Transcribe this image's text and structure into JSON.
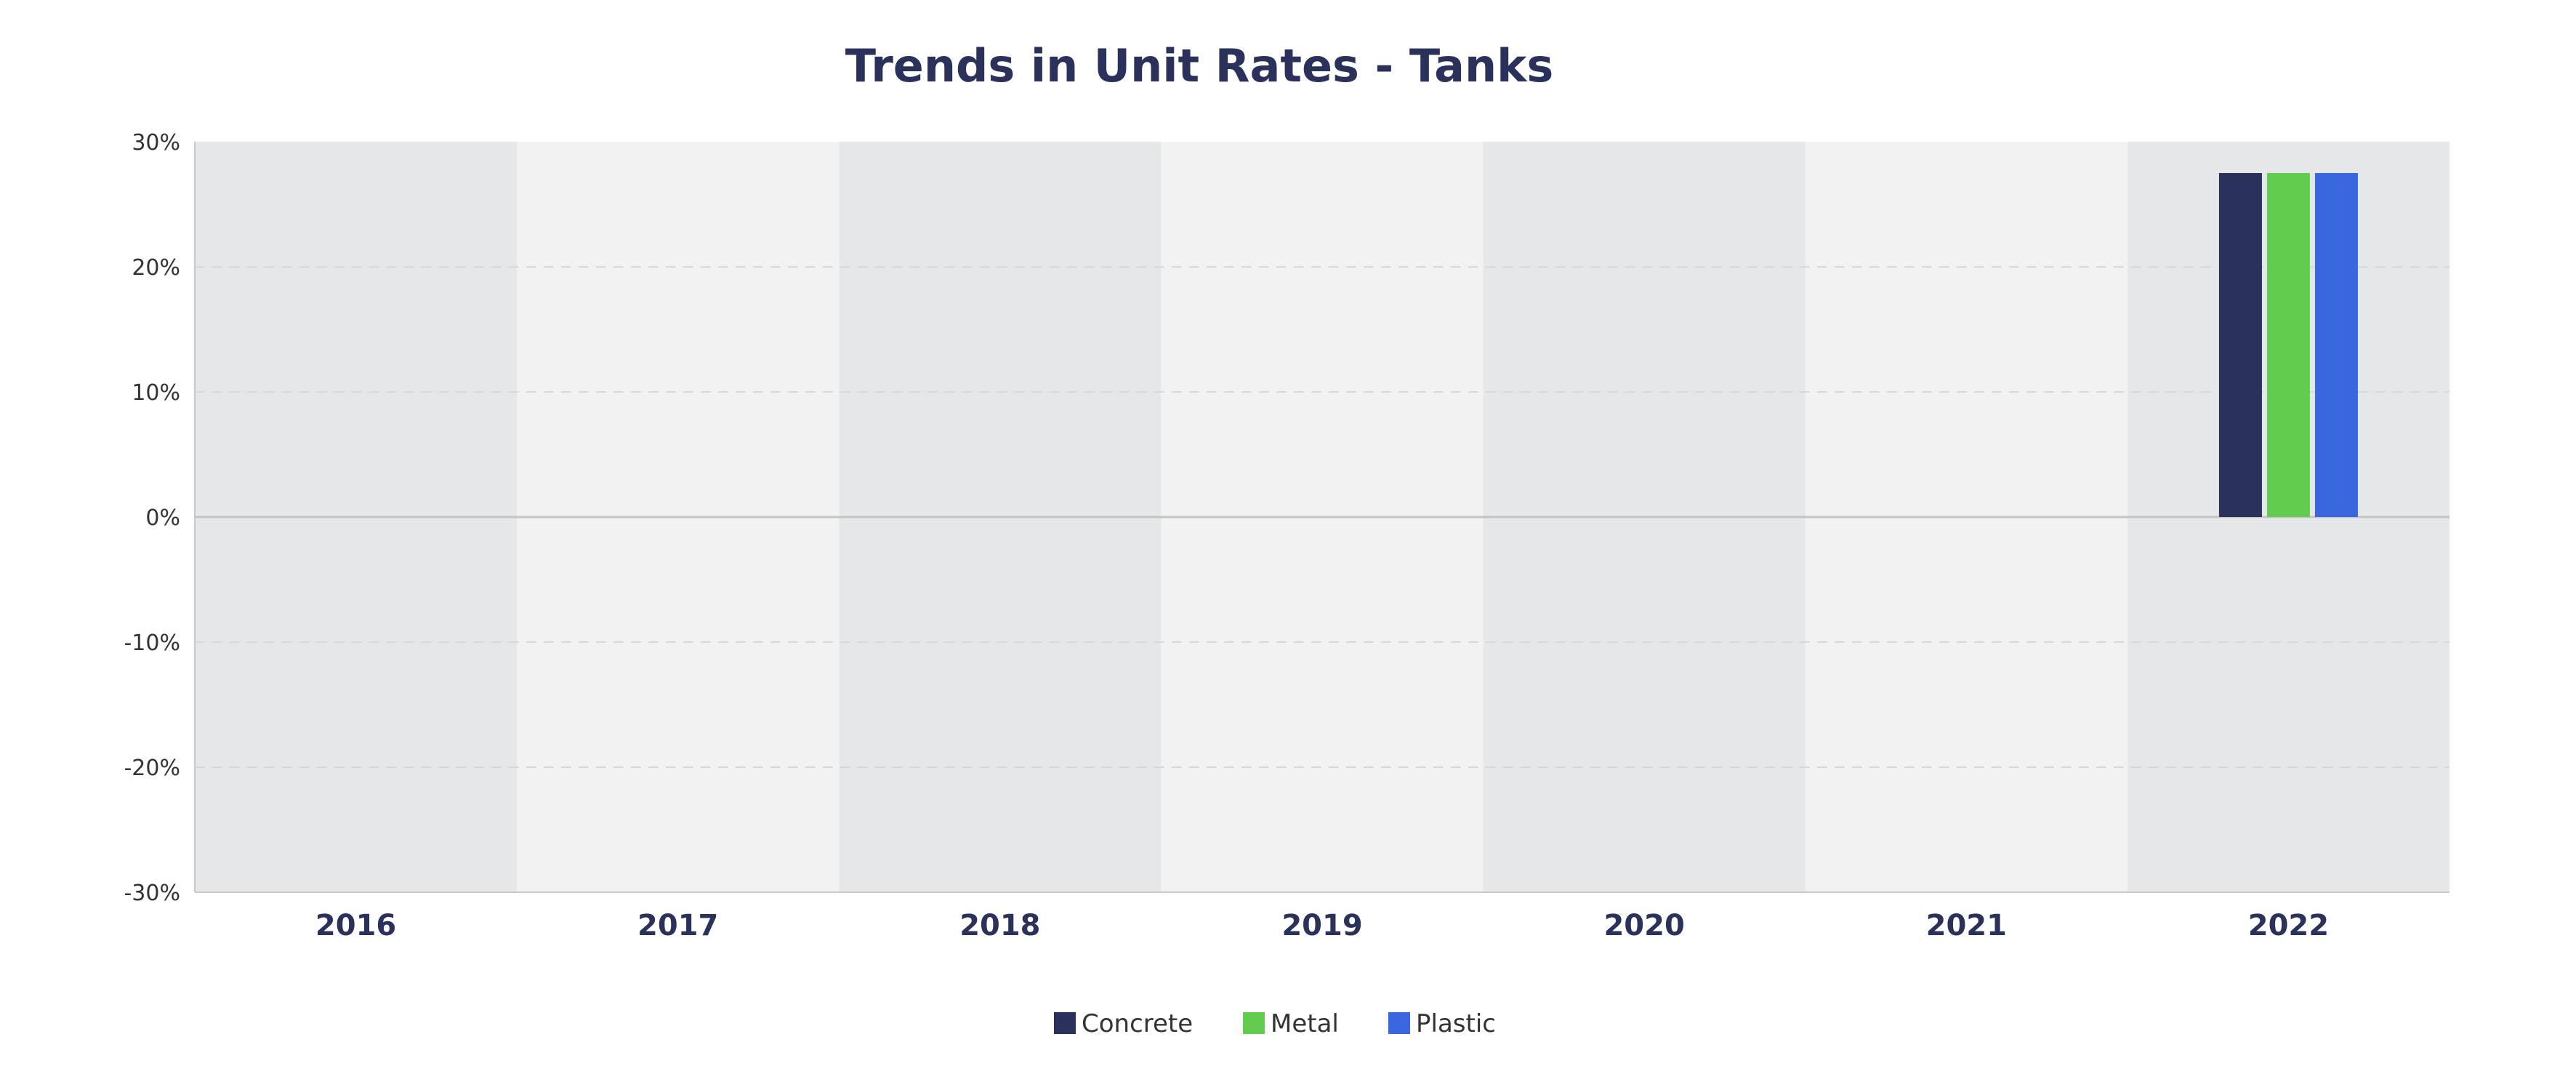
{
  "chart_data": {
    "type": "bar",
    "title": "Trends in Unit Rates - Tanks",
    "xlabel": "",
    "ylabel": "",
    "categories": [
      "2016",
      "2017",
      "2018",
      "2019",
      "2020",
      "2021",
      "2022"
    ],
    "series": [
      {
        "name": "Concrete",
        "color": "#2a315a",
        "values": [
          null,
          null,
          null,
          null,
          null,
          null,
          27.5
        ]
      },
      {
        "name": "Metal",
        "color": "#62cc4f",
        "values": [
          null,
          null,
          null,
          null,
          null,
          null,
          27.5
        ]
      },
      {
        "name": "Plastic",
        "color": "#3a66e0",
        "values": [
          null,
          null,
          null,
          null,
          null,
          null,
          27.5
        ]
      }
    ],
    "ylim": [
      -30,
      30
    ],
    "yticks": [
      30,
      20,
      10,
      0,
      -10,
      -20,
      -30
    ],
    "ytick_labels": [
      "30%",
      "20%",
      "10%",
      "0%",
      "-10%",
      "-20%",
      "-30%"
    ],
    "grid": true,
    "alternating_band_colors": [
      "#e6e7e9",
      "#f2f2f2"
    ],
    "legend_position": "bottom-center"
  }
}
